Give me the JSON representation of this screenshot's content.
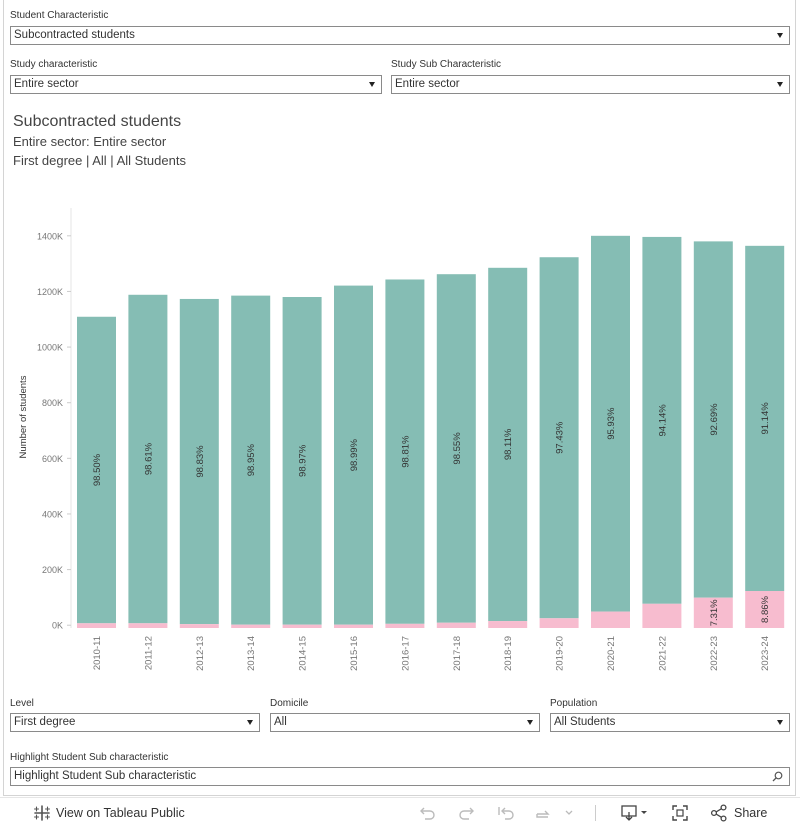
{
  "filters": {
    "student_characteristic": {
      "label": "Student Characteristic",
      "value": "Subcontracted students"
    },
    "study_characteristic": {
      "label": "Study characteristic",
      "value": "Entire sector"
    },
    "study_sub_characteristic": {
      "label": "Study Sub Characteristic",
      "value": "Entire sector"
    },
    "level": {
      "label": "Level",
      "value": "First degree"
    },
    "domicile": {
      "label": "Domicile",
      "value": "All"
    },
    "population": {
      "label": "Population",
      "value": "All Students"
    },
    "highlight": {
      "label": "Highlight Student Sub characteristic",
      "placeholder": "Highlight Student Sub characteristic"
    }
  },
  "heading": {
    "title": "Subcontracted students",
    "line2": "Entire sector: Entire sector",
    "line3": "First degree | All | All Students"
  },
  "toolbar": {
    "view_label": "View on Tableau Public",
    "share_label": "Share"
  },
  "colors": {
    "main": "#85bdb4",
    "highlight": "#f7bccf"
  },
  "chart_data": {
    "type": "bar",
    "stacked": true,
    "ylabel": "Number of students",
    "ylim": [
      -10000,
      1500000
    ],
    "yticks": [
      0,
      200000,
      400000,
      600000,
      800000,
      1000000,
      1200000,
      1400000
    ],
    "ytick_labels": [
      "0K",
      "200K",
      "400K",
      "600K",
      "800K",
      "1000K",
      "1200K",
      "1400K"
    ],
    "grid": false,
    "categories": [
      "2010-11",
      "2011-12",
      "2012-13",
      "2013-14",
      "2014-15",
      "2015-16",
      "2016-17",
      "2017-18",
      "2018-19",
      "2019-20",
      "2020-21",
      "2021-22",
      "2022-23",
      "2023-24"
    ],
    "series": [
      {
        "values": [
          1109000,
          1188000,
          1173000,
          1185000,
          1180000,
          1221000,
          1243000,
          1262000,
          1285000,
          1323000,
          1400000,
          1396000,
          1380000,
          1364000
        ],
        "labels": [
          "98.50%",
          "98.61%",
          "98.83%",
          "98.95%",
          "98.97%",
          "98.99%",
          "98.81%",
          "98.55%",
          "98.11%",
          "97.43%",
          "95.93%",
          "94.14%",
          "92.69%",
          "91.14%"
        ]
      },
      {
        "values": [
          17000,
          17000,
          14000,
          12000,
          12000,
          12000,
          15000,
          19000,
          25000,
          35000,
          59000,
          87000,
          109000,
          133000
        ],
        "labels": [
          "",
          "",
          "",
          "",
          "",
          "",
          "",
          "",
          "",
          "",
          "",
          "",
          "7.31%",
          "8.86%"
        ]
      }
    ]
  }
}
